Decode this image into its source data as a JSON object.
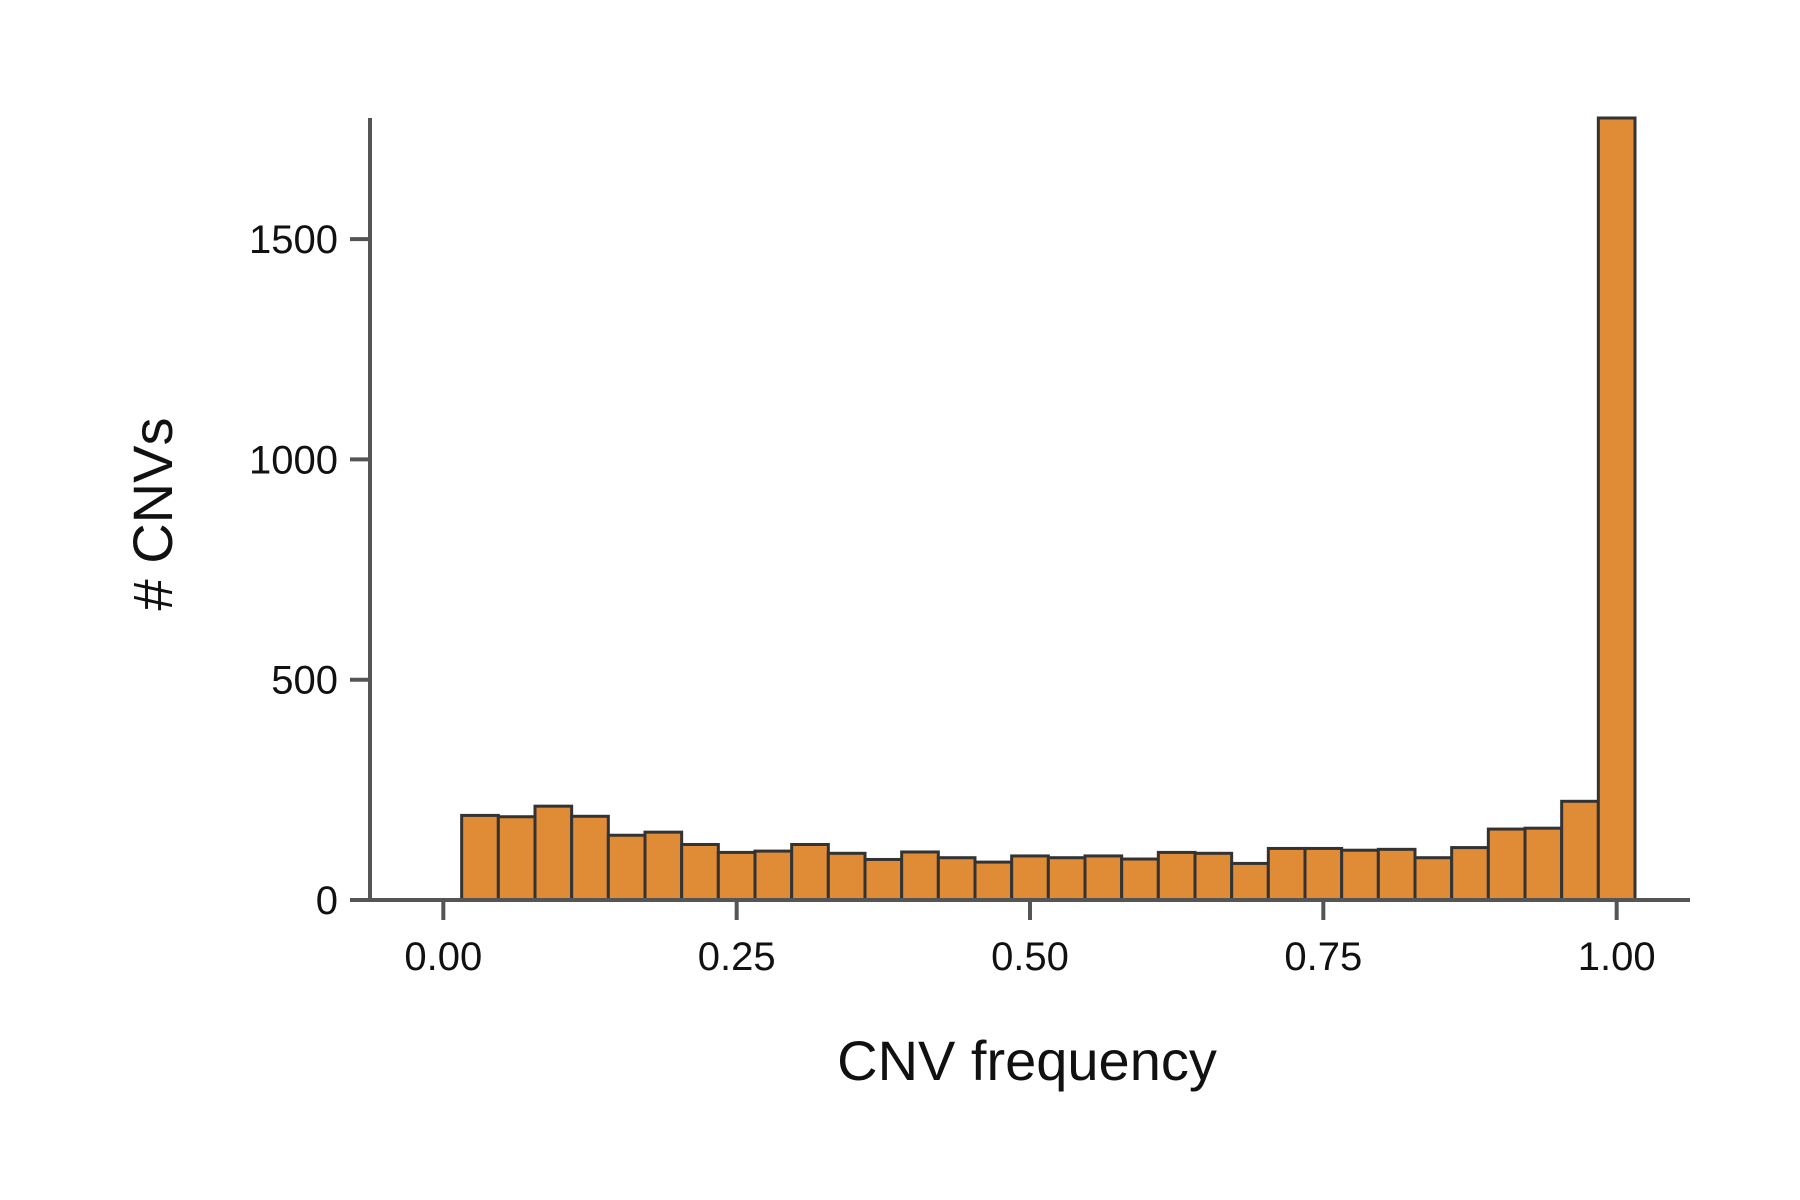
{
  "chart_data": {
    "type": "bar",
    "title": "",
    "xlabel": "CNV frequency",
    "ylabel": "# CNVs",
    "xlim": [
      -0.0625,
      1.0625
    ],
    "ylim": [
      0,
      1775
    ],
    "xticks": [
      0.0,
      0.25,
      0.5,
      0.75,
      1.0
    ],
    "xtick_labels": [
      "0.00",
      "0.25",
      "0.50",
      "0.75",
      "1.00"
    ],
    "yticks": [
      0,
      500,
      1000,
      1500
    ],
    "ytick_labels": [
      "0",
      "500",
      "1000",
      "1500"
    ],
    "grid": false,
    "legend": "none",
    "bin_width": 0.03125,
    "bin_starts": [
      0.015625,
      0.046875,
      0.078125,
      0.109375,
      0.140625,
      0.171875,
      0.203125,
      0.234375,
      0.265625,
      0.296875,
      0.328125,
      0.359375,
      0.390625,
      0.421875,
      0.453125,
      0.484375,
      0.515625,
      0.546875,
      0.578125,
      0.609375,
      0.640625,
      0.671875,
      0.703125,
      0.734375,
      0.765625,
      0.796875,
      0.828125,
      0.859375,
      0.890625,
      0.921875,
      0.953125,
      0.984375
    ],
    "values": [
      192,
      189,
      213,
      190,
      147,
      154,
      126,
      108,
      111,
      126,
      106,
      92,
      109,
      96,
      86,
      100,
      96,
      100,
      93,
      108,
      106,
      83,
      117,
      117,
      113,
      115,
      96,
      119,
      161,
      163,
      224,
      1775
    ],
    "colors": {
      "bar_fill": "#E08B36",
      "bar_stroke": "#333333",
      "axis": "#555555"
    }
  }
}
